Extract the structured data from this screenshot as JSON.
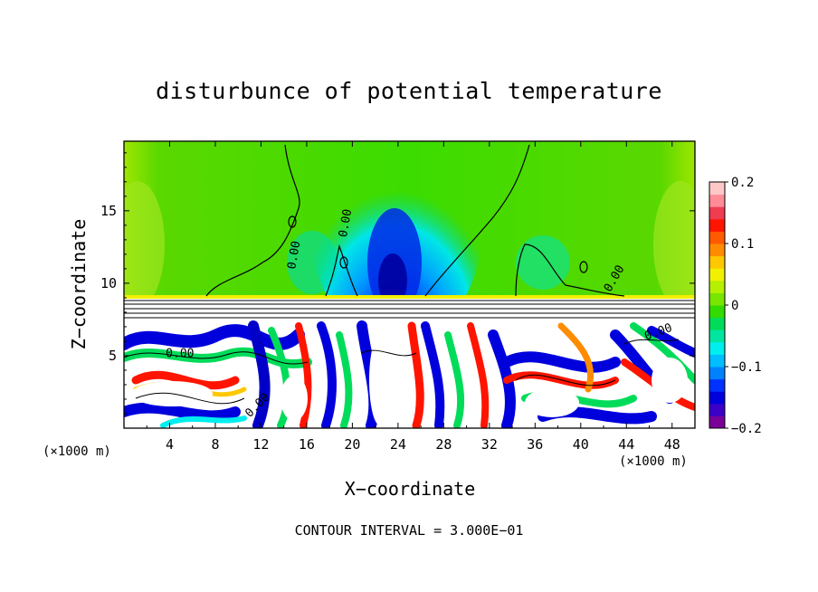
{
  "chart_data": {
    "type": "heatmap",
    "title": "disturbunce of potential temperature",
    "xlabel": "X−coordinate",
    "ylabel": "Z−coordinate",
    "x_unit_label": "(×1000 m)",
    "footnote": "CONTOUR INTERVAL = 3.000E−01",
    "xlim": [
      0,
      50
    ],
    "ylim": [
      0,
      19.8
    ],
    "x_ticks": [
      4,
      8,
      12,
      16,
      20,
      24,
      28,
      32,
      36,
      40,
      44,
      48
    ],
    "x_tick_labels": [
      "4",
      "8",
      "12",
      "16",
      "20",
      "24",
      "28",
      "32",
      "36",
      "40",
      "44",
      "48"
    ],
    "y_ticks": [
      5,
      10,
      15
    ],
    "y_tick_labels": [
      "5",
      "10",
      "15"
    ],
    "colorbar": {
      "range": [
        -0.2,
        0.2
      ],
      "ticks": [
        -0.2,
        -0.1,
        0,
        0.1,
        0.2
      ],
      "tick_labels": [
        "−0.2",
        "−0.1",
        "0",
        "0.1",
        "0.2"
      ],
      "colors": [
        "#7a0099",
        "#3c00c8",
        "#0000dc",
        "#0032ff",
        "#0082ff",
        "#00beff",
        "#00eeee",
        "#00e6a0",
        "#00dc5a",
        "#32dc00",
        "#78e600",
        "#b4f000",
        "#f0f000",
        "#ffc800",
        "#ff8c00",
        "#ff5a00",
        "#ff1400",
        "#f03c50",
        "#ff8c96",
        "#ffc8c8"
      ]
    },
    "contour_labels": [
      "0.00",
      "0.00",
      "0.00",
      "0.00",
      "0.00",
      "0.00"
    ]
  }
}
